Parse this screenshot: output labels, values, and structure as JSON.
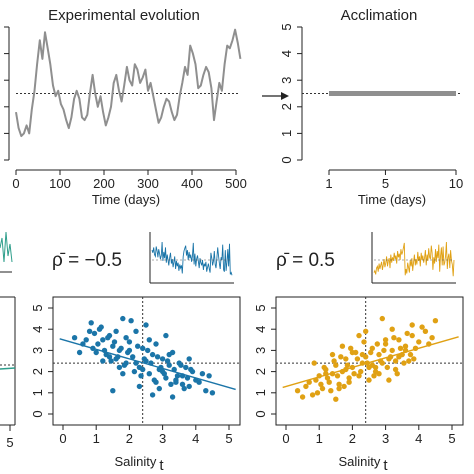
{
  "colors": {
    "evolution": "#8f8f8f",
    "acclimation": "#8f8f8f",
    "neg": "#1b75a8",
    "pos": "#e0a114",
    "left_panel": "#2e9e8b",
    "axis": "#222222"
  },
  "chart_data": [
    {
      "type": "line",
      "title": "Experimental evolution",
      "xlabel": "Time (days)",
      "xlim": [
        0,
        500
      ],
      "ylim": [
        0,
        5
      ],
      "xticks": [
        "0",
        "100",
        "200",
        "300",
        "400",
        "500"
      ],
      "hline": 2.5,
      "x": [
        0,
        6,
        12,
        18,
        24,
        30,
        36,
        42,
        48,
        54,
        60,
        66,
        72,
        78,
        84,
        90,
        96,
        102,
        108,
        114,
        120,
        126,
        132,
        138,
        144,
        150,
        156,
        162,
        168,
        174,
        180,
        186,
        192,
        198,
        204,
        210,
        216,
        222,
        228,
        234,
        240,
        246,
        252,
        258,
        264,
        270,
        276,
        282,
        288,
        294,
        300,
        306,
        312,
        318,
        324,
        330,
        336,
        342,
        348,
        354,
        360,
        366,
        372,
        378,
        384,
        390,
        396,
        402,
        408,
        414,
        420,
        426,
        432,
        438,
        444,
        450,
        456,
        462,
        468,
        474,
        480,
        486,
        492,
        498,
        504,
        510
      ],
      "y": [
        1.8,
        1.2,
        0.9,
        1.0,
        1.3,
        1.0,
        1.9,
        2.6,
        3.6,
        4.5,
        3.8,
        4.8,
        4.2,
        3.6,
        2.8,
        2.4,
        2.6,
        2.1,
        1.9,
        1.5,
        1.2,
        1.6,
        2.3,
        2.6,
        2.3,
        1.6,
        1.5,
        1.7,
        2.5,
        3.2,
        2.5,
        2.0,
        2.4,
        1.8,
        1.3,
        1.6,
        2.0,
        2.9,
        3.2,
        2.6,
        2.2,
        2.8,
        3.5,
        3.0,
        2.8,
        3.6,
        3.4,
        2.9,
        3.1,
        3.4,
        2.6,
        2.9,
        2.4,
        1.9,
        1.4,
        1.6,
        2.0,
        2.3,
        2.2,
        1.8,
        1.5,
        1.7,
        2.4,
        2.9,
        3.5,
        3.2,
        4.3,
        4.0,
        3.6,
        2.7,
        2.8,
        3.2,
        3.5,
        3.3,
        2.7,
        1.5,
        2.2,
        2.9,
        2.6,
        3.6,
        4.3,
        4.2,
        4.5,
        4.9,
        4.4,
        3.8
      ]
    },
    {
      "type": "line",
      "title": "Acclimation",
      "xlabel": "Time (days)",
      "xlim": [
        1,
        10
      ],
      "ylim": [
        0,
        5
      ],
      "xticks": [
        "1",
        "5",
        "10"
      ],
      "yticks": [
        "0",
        "1",
        "2",
        "3",
        "4",
        "5"
      ],
      "hline": 2.5,
      "x": [
        1,
        10
      ],
      "y": [
        2.5,
        2.5
      ]
    },
    {
      "type": "scatter",
      "label": "ρ̄ = −0.5",
      "rho": -0.5,
      "xlabel": "Salinity",
      "xlabel_sub": "t",
      "xlim": [
        0,
        5
      ],
      "ylim": [
        0,
        5
      ],
      "xticks": [
        "0",
        "1",
        "2",
        "3",
        "4",
        "5"
      ],
      "yticks": [
        "0",
        "1",
        "2",
        "3",
        "4",
        "5"
      ],
      "vline": 2.4,
      "hline": 2.4,
      "fit": {
        "intercept": 3.5,
        "slope": -0.45
      },
      "x": [
        0.35,
        0.6,
        0.8,
        0.9,
        1.0,
        1.1,
        1.2,
        1.3,
        1.4,
        1.5,
        1.6,
        1.7,
        1.8,
        1.9,
        2.0,
        2.1,
        2.2,
        2.3,
        2.4,
        2.5,
        2.6,
        2.7,
        2.8,
        2.9,
        3.0,
        3.1,
        3.2,
        3.3,
        3.4,
        3.5,
        3.6,
        3.7,
        3.8,
        3.9,
        4.0,
        4.2,
        4.5,
        0.5,
        0.7,
        0.95,
        1.15,
        1.25,
        1.35,
        1.45,
        1.55,
        1.65,
        1.75,
        1.85,
        1.95,
        2.05,
        2.15,
        2.25,
        2.35,
        2.45,
        2.55,
        2.65,
        2.75,
        2.85,
        2.95,
        3.05,
        3.15,
        3.25,
        3.35,
        3.45,
        3.55,
        3.65,
        3.75,
        3.85,
        4.1,
        4.3,
        1.05,
        1.4,
        1.8,
        2.2,
        2.6,
        3.0,
        3.4,
        3.8,
        1.6,
        2.0,
        2.4,
        2.8,
        3.2,
        1.2,
        2.5,
        3.6,
        2.9,
        1.9,
        2.3,
        1.7,
        3.1,
        4.4,
        0.85,
        2.7,
        1.5,
        3.3
      ],
      "y": [
        3.6,
        3.3,
        3.9,
        3.1,
        2.9,
        4.0,
        3.5,
        2.8,
        3.7,
        3.2,
        2.6,
        3.0,
        4.5,
        2.4,
        3.4,
        2.7,
        3.9,
        2.2,
        3.1,
        2.5,
        1.9,
        2.8,
        3.3,
        2.1,
        2.6,
        1.7,
        2.3,
        2.9,
        1.5,
        2.4,
        1.8,
        2.2,
        1.3,
        2.0,
        1.6,
        1.9,
        1.0,
        2.9,
        3.5,
        3.8,
        4.1,
        3.0,
        3.6,
        2.5,
        3.4,
        2.7,
        3.1,
        2.3,
        2.9,
        4.4,
        2.0,
        3.2,
        1.8,
        2.6,
        3.0,
        2.4,
        1.6,
        2.7,
        2.2,
        1.9,
        2.5,
        1.4,
        2.1,
        1.8,
        2.3,
        1.2,
        1.7,
        2.1,
        1.5,
        1.1,
        3.3,
        2.7,
        1.9,
        2.4,
        3.5,
        2.0,
        1.6,
        2.6,
        3.9,
        3.0,
        2.1,
        1.5,
        2.8,
        2.5,
        4.2,
        1.4,
        1.2,
        3.6,
        1.3,
        2.2,
        3.7,
        1.8,
        4.3,
        0.9,
        1.1,
        0.8
      ]
    },
    {
      "type": "scatter",
      "label": "ρ̄ = 0.5",
      "rho": 0.5,
      "xlabel": "Salinity",
      "xlabel_sub": "t",
      "xlim": [
        0,
        5
      ],
      "ylim": [
        0,
        5
      ],
      "xticks": [
        "0",
        "1",
        "2",
        "3",
        "4",
        "5"
      ],
      "yticks": [
        "0",
        "1",
        "2",
        "3",
        "4",
        "5"
      ],
      "vline": 2.4,
      "hline": 2.4,
      "fit": {
        "intercept": 1.3,
        "slope": 0.45
      },
      "x": [
        0.35,
        0.6,
        0.8,
        0.9,
        1.0,
        1.1,
        1.2,
        1.3,
        1.4,
        1.5,
        1.6,
        1.7,
        1.8,
        1.9,
        2.0,
        2.1,
        2.2,
        2.3,
        2.4,
        2.5,
        2.6,
        2.7,
        2.8,
        2.9,
        3.0,
        3.1,
        3.2,
        3.3,
        3.4,
        3.5,
        3.6,
        3.7,
        3.8,
        3.9,
        4.0,
        4.2,
        4.5,
        0.5,
        0.7,
        0.95,
        1.15,
        1.25,
        1.35,
        1.45,
        1.55,
        1.65,
        1.75,
        1.85,
        1.95,
        2.05,
        2.15,
        2.25,
        2.35,
        2.45,
        2.55,
        2.65,
        2.75,
        2.85,
        2.95,
        3.05,
        3.15,
        3.25,
        3.35,
        3.45,
        3.55,
        3.65,
        3.75,
        3.85,
        4.1,
        4.3,
        1.05,
        1.4,
        1.8,
        2.2,
        2.6,
        3.0,
        3.4,
        3.8,
        1.6,
        2.0,
        2.4,
        2.8,
        3.2,
        1.2,
        2.5,
        3.6,
        2.9,
        1.9,
        2.3,
        1.7,
        3.1,
        4.4,
        0.85,
        2.7,
        1.5,
        3.3
      ],
      "y": [
        1.1,
        1.3,
        0.9,
        1.6,
        1.8,
        1.2,
        2.1,
        1.5,
        1.9,
        2.3,
        1.4,
        2.0,
        2.6,
        1.7,
        2.2,
        2.9,
        1.8,
        2.4,
        2.7,
        1.6,
        3.1,
        2.2,
        2.8,
        2.4,
        3.3,
        2.6,
        3.0,
        2.1,
        3.5,
        2.8,
        3.2,
        2.5,
        3.7,
        3.1,
        3.4,
        3.9,
        4.4,
        0.8,
        1.5,
        1.0,
        2.2,
        1.7,
        1.1,
        2.5,
        1.8,
        2.7,
        1.3,
        2.3,
        3.1,
        1.9,
        2.6,
        2.0,
        3.4,
        2.4,
        2.9,
        1.8,
        3.3,
        2.5,
        3.0,
        2.2,
        2.7,
        3.6,
        1.9,
        3.1,
        2.4,
        3.8,
        2.8,
        2.6,
        4.1,
        3.3,
        1.4,
        2.8,
        2.1,
        3.7,
        2.3,
        3.5,
        2.7,
        4.2,
        1.2,
        2.9,
        3.9,
        1.9,
        4.0,
        1.9,
        2.2,
        3.0,
        4.5,
        1.5,
        2.8,
        3.2,
        1.6,
        3.6,
        2.4,
        2.0,
        0.7,
        2.5
      ]
    }
  ]
}
